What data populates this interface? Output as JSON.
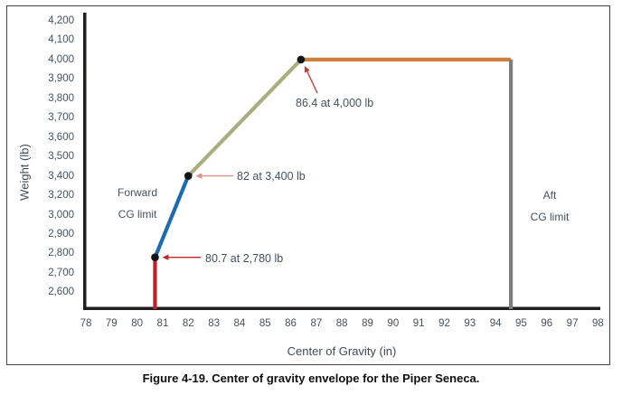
{
  "figure": {
    "caption": "Figure 4-19. Center of gravity envelope for the Piper Seneca."
  },
  "chart_data": {
    "type": "line",
    "title": "Center of gravity envelope for the Piper Seneca",
    "xlabel": "Center of Gravity (in)",
    "ylabel": "Weight (lb)",
    "xlim": [
      78,
      98
    ],
    "x_ticks": [
      "78",
      "79",
      "80",
      "81",
      "82",
      "83",
      "84",
      "85",
      "86",
      "87",
      "88",
      "89",
      "90",
      "91",
      "92",
      "93",
      "94",
      "95",
      "96",
      "97",
      "98"
    ],
    "y_ticks": [
      {
        "label": "4,200",
        "value": 4200
      },
      {
        "label": "4,100",
        "value": 4100
      },
      {
        "label": "4,000",
        "value": 4000
      },
      {
        "label": "3,900",
        "value": 3900
      },
      {
        "label": "3,800",
        "value": 3800
      },
      {
        "label": "3,700",
        "value": 3700
      },
      {
        "label": "3,600",
        "value": 3600
      },
      {
        "label": "3,500",
        "value": 3500
      },
      {
        "label": "3,400",
        "value": 3400
      },
      {
        "label": "3,200",
        "value": 3200
      },
      {
        "label": "3,000",
        "value": 3000
      },
      {
        "label": "2,900",
        "value": 2900
      },
      {
        "label": "2,800",
        "value": 2800
      },
      {
        "label": "2,700",
        "value": 2700
      },
      {
        "label": "2,600",
        "value": 2600
      }
    ],
    "grid": false,
    "legend": "none",
    "envelope_points": [
      {
        "cg": 80.7,
        "weight": 2780
      },
      {
        "cg": 82,
        "weight": 3400
      },
      {
        "cg": 86.4,
        "weight": 4000
      }
    ],
    "aft_cg_limit": 94.6,
    "max_weight": 4000,
    "segments": [
      {
        "name": "forward-cg-floor-line",
        "x1": 80.7,
        "y1": "axis",
        "x2": 80.7,
        "y2": 2780,
        "color": "#bf2228"
      },
      {
        "name": "forward-limit-lower",
        "x1": 80.7,
        "y1": 2780,
        "x2": 82,
        "y2": 3400,
        "color": "#1d6bb0"
      },
      {
        "name": "forward-limit-upper",
        "x1": 82,
        "y1": 3400,
        "x2": 86.4,
        "y2": 4000,
        "color": "#a9ad80"
      },
      {
        "name": "max-weight-line",
        "x1": 86.4,
        "y1": 4000,
        "x2": 94.6,
        "y2": 4000,
        "color": "#cd7f3e"
      },
      {
        "name": "aft-limit-line",
        "x1": 94.6,
        "y1": 4000,
        "x2": 94.6,
        "y2": "axis",
        "color": "#7d7d7d"
      }
    ],
    "annotations": [
      {
        "text": "86.4 at 4,000 lb",
        "points_to": {
          "cg": 86.4,
          "weight": 4000
        },
        "arrow_color": "#c23b35"
      },
      {
        "text": "82 at 3,400 lb",
        "points_to": {
          "cg": 82,
          "weight": 3400
        },
        "arrow_color": "#e2908e"
      },
      {
        "text": "80.7 at 2,780 lb",
        "points_to": {
          "cg": 80.7,
          "weight": 2780
        },
        "arrow_color": "#c1272d"
      }
    ],
    "region_labels": [
      {
        "lines": [
          "Forward",
          "CG limit"
        ]
      },
      {
        "lines": [
          "Aft",
          "CG limit"
        ]
      }
    ],
    "colors": {
      "axis": "#1e1e1e",
      "marker": "#151515",
      "tick_text": "#44525e"
    }
  }
}
